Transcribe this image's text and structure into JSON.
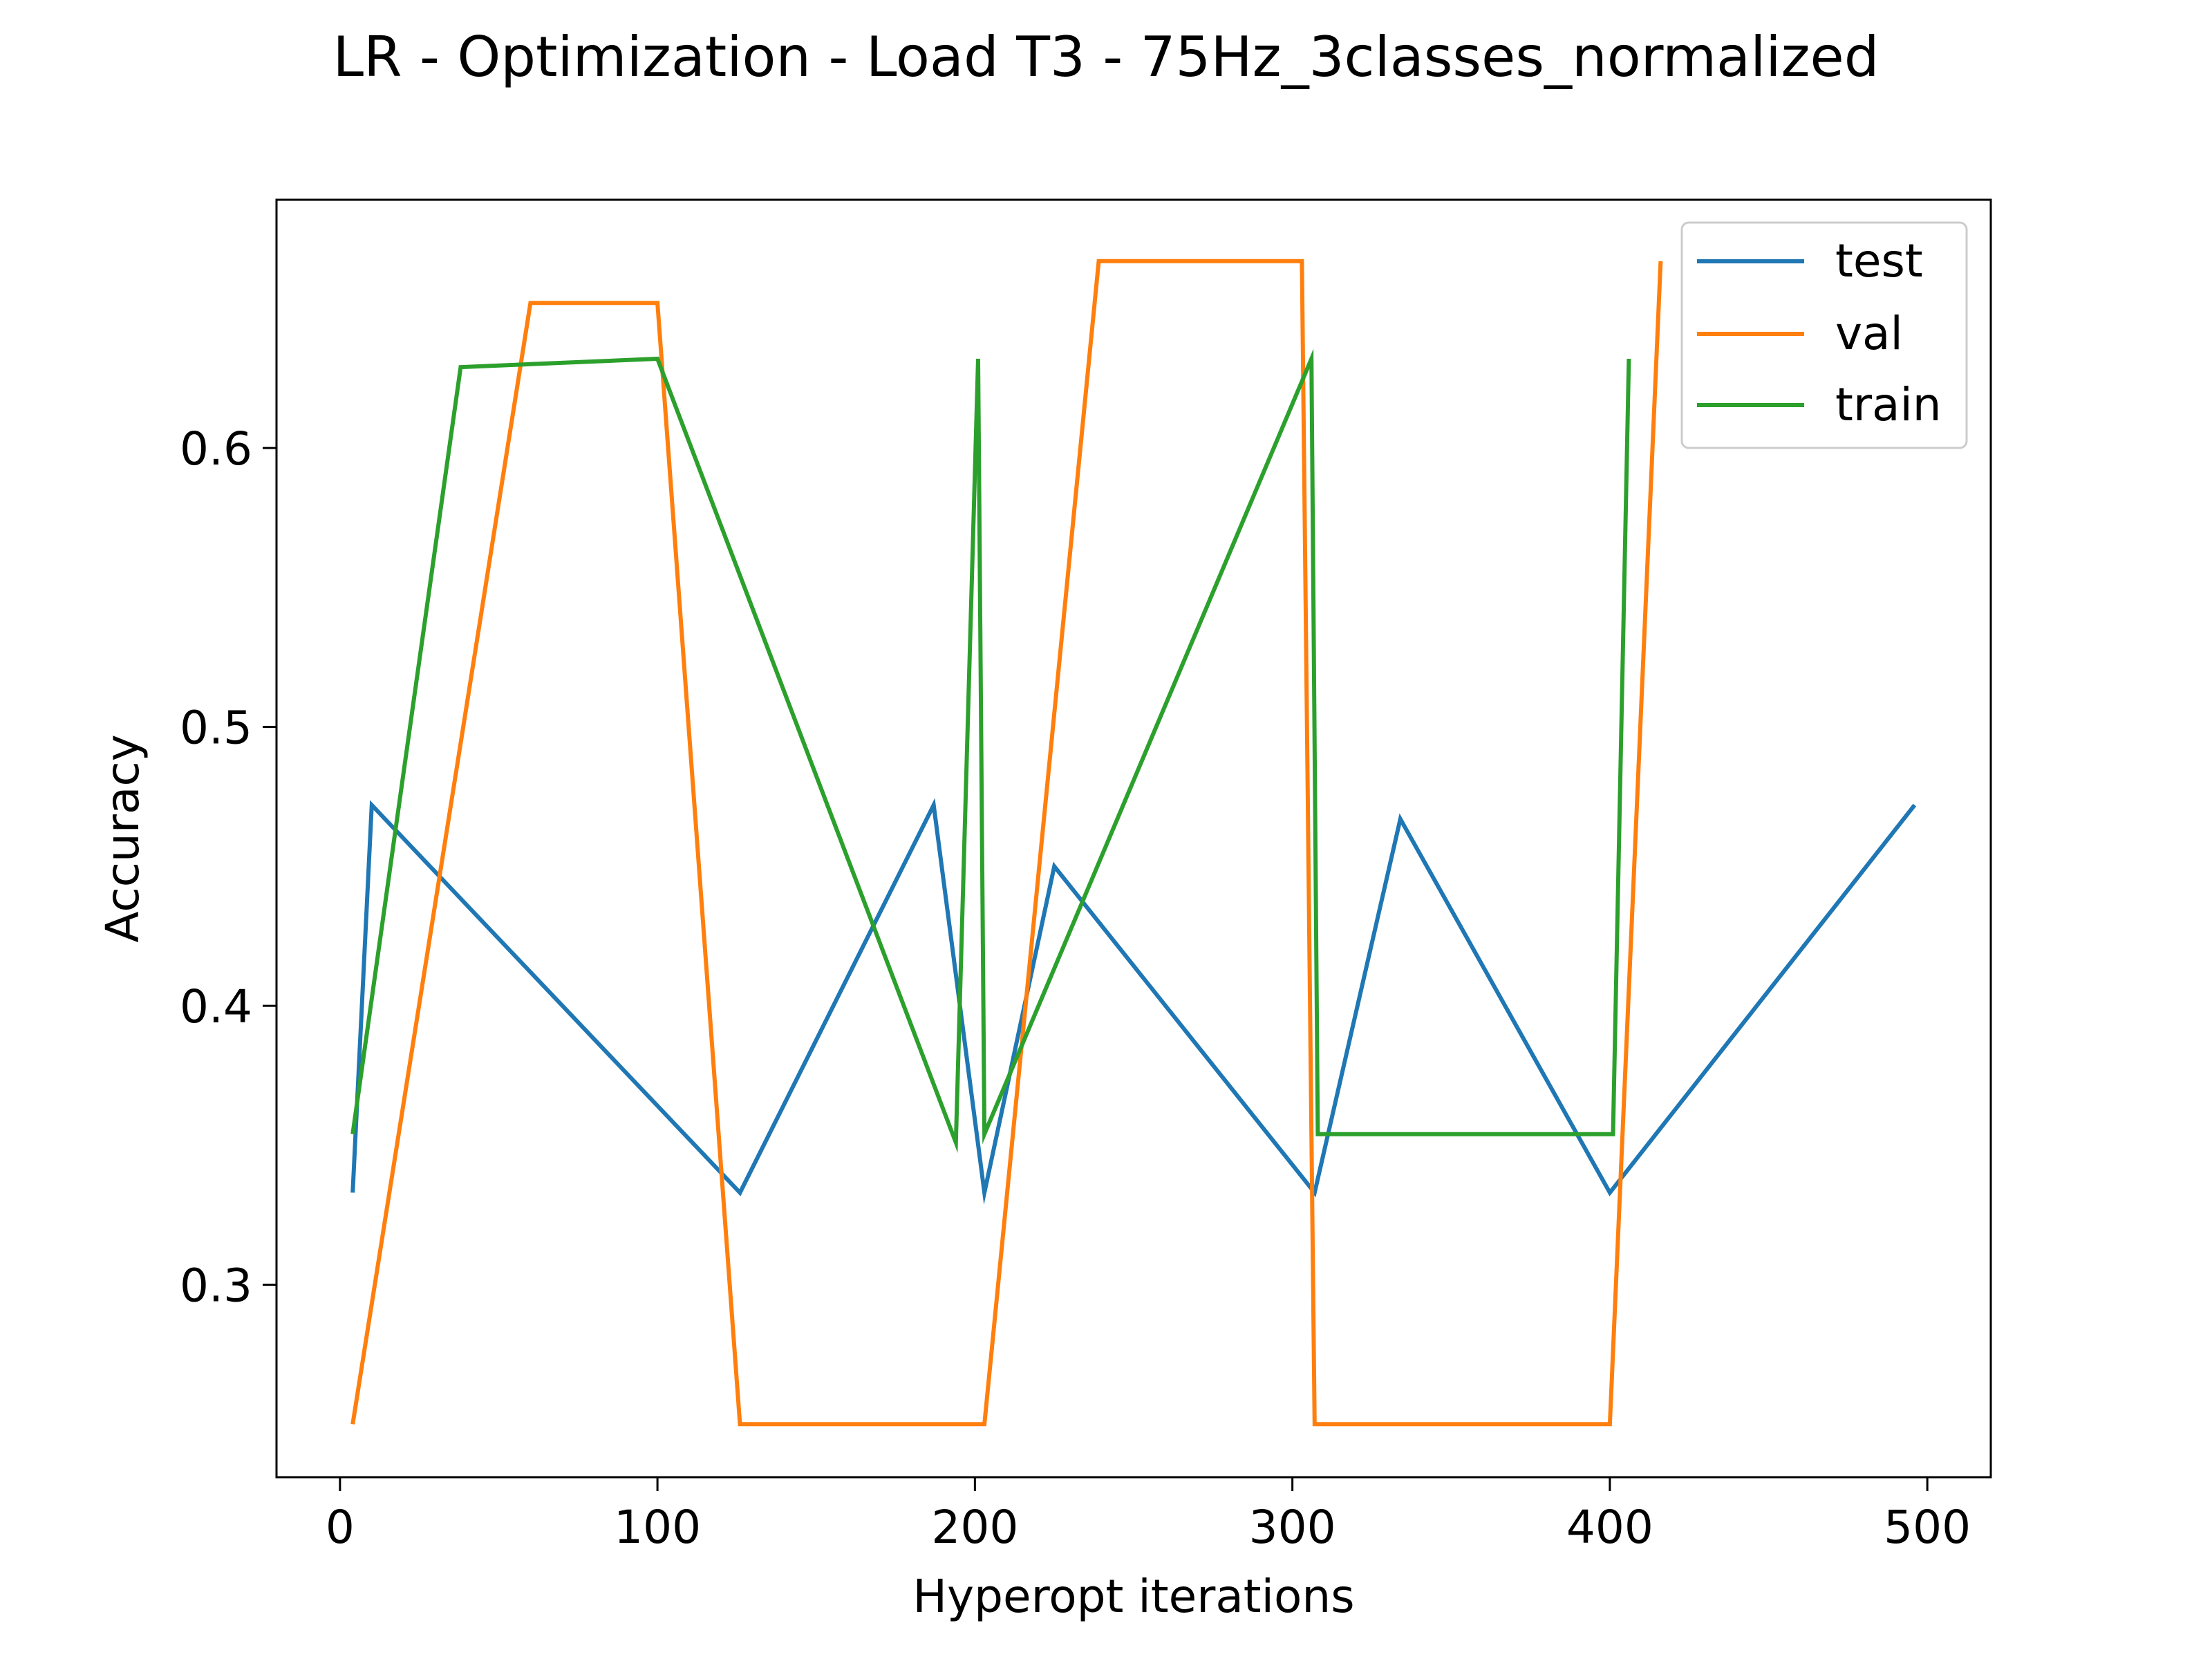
{
  "chart_data": {
    "type": "line",
    "title": "LR - Optimization - Load T3 - 75Hz_3classes_normalized",
    "xlabel": "Hyperopt iterations",
    "ylabel": "Accuracy",
    "xlim": [
      -20,
      520
    ],
    "ylim": [
      0.231,
      0.689
    ],
    "xticks": [
      0,
      100,
      200,
      300,
      400,
      500
    ],
    "yticks": [
      0.3,
      0.4,
      0.5,
      0.6
    ],
    "xtick_labels": [
      "0",
      "100",
      "200",
      "300",
      "400",
      "500"
    ],
    "ytick_labels": [
      "0.3",
      "0.4",
      "0.5",
      "0.6"
    ],
    "grid": false,
    "legend": "top-right",
    "series": [
      {
        "name": "test",
        "color": "#1f77b4",
        "points": [
          [
            4,
            0.333
          ],
          [
            10,
            0.472
          ],
          [
            126,
            0.333
          ],
          [
            187,
            0.472
          ],
          [
            203,
            0.333
          ],
          [
            225,
            0.45
          ],
          [
            307,
            0.333
          ],
          [
            334,
            0.467
          ],
          [
            400,
            0.333
          ],
          [
            496,
            0.472
          ]
        ]
      },
      {
        "name": "val",
        "color": "#ff7f0e",
        "points": [
          [
            4,
            0.25
          ],
          [
            60,
            0.652
          ],
          [
            100,
            0.652
          ],
          [
            126,
            0.25
          ],
          [
            203,
            0.25
          ],
          [
            239,
            0.667
          ],
          [
            303,
            0.667
          ],
          [
            307,
            0.25
          ],
          [
            400,
            0.25
          ],
          [
            416,
            0.667
          ]
        ]
      },
      {
        "name": "train",
        "color": "#2ca02c",
        "points": [
          [
            4,
            0.354
          ],
          [
            38,
            0.629
          ],
          [
            100,
            0.632
          ],
          [
            194,
            0.351
          ],
          [
            201,
            0.632
          ],
          [
            203,
            0.354
          ],
          [
            306,
            0.632
          ],
          [
            308,
            0.354
          ],
          [
            401,
            0.354
          ],
          [
            406,
            0.632
          ]
        ]
      }
    ]
  }
}
